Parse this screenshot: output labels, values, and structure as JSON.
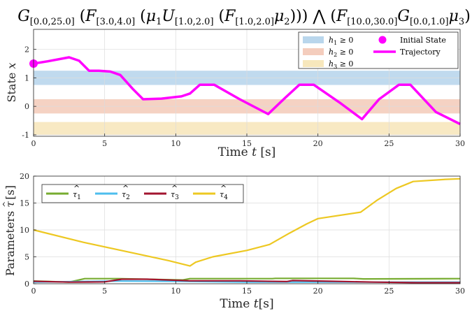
{
  "chart_data": [
    {
      "type": "line",
      "title_parts": {
        "g": "G",
        "g_sub": "[0.0,25.0]",
        "f1": "F",
        "f1_sub": "[3.0,4.0]",
        "mu1": "μ",
        "mu1_sub": "1",
        "u": "U",
        "u_sub": "[1.0,2.0]",
        "f2": "F",
        "f2_sub": "[1.0,2.0]",
        "mu2": "μ",
        "mu2_sub": "2",
        "and": "⋀",
        "f3": "F",
        "f3_sub": "[10.0,30.0]",
        "g2": "G",
        "g2_sub": "[0.0,1.0]",
        "mu3": "μ",
        "mu3_sub": "3"
      },
      "xlabel": "Time",
      "xlabel_var": "t",
      "xlabel_unit": "[s]",
      "ylabel": "State",
      "ylabel_var": "x",
      "xlim": [
        0,
        30
      ],
      "ylim": [
        -1.05,
        2.7
      ],
      "xticks": [
        "0",
        "5",
        "10",
        "15",
        "20",
        "25",
        "30"
      ],
      "yticks": [
        "-1",
        "0",
        "1",
        "2"
      ],
      "grid": true,
      "legend_position": "top-right",
      "bands": [
        {
          "name": "h",
          "sub": "1",
          "suffix": "≥ 0",
          "y_range": [
            0.75,
            1.25
          ],
          "color": "#b9d6ec"
        },
        {
          "name": "h",
          "sub": "2",
          "suffix": "≥ 0",
          "y_range": [
            -0.25,
            0.25
          ],
          "color": "#f4cdbd"
        },
        {
          "name": "h",
          "sub": "3",
          "suffix": "≥ 0",
          "y_range": [
            -1.0,
            -0.55
          ],
          "color": "#f7e7bc"
        }
      ],
      "initial_state": {
        "label": "Initial State",
        "x": 0,
        "y": 1.5,
        "color": "#ff00ff"
      },
      "trajectory": {
        "label": "Trajectory",
        "color": "#ff00ff",
        "x": [
          0,
          1,
          2.5,
          3.2,
          3.9,
          4.6,
          5.4,
          6.1,
          7.0,
          7.7,
          9.0,
          10.4,
          11.0,
          11.7,
          12.7,
          14.5,
          16.5,
          17.7,
          18.7,
          19.7,
          21.5,
          23.1,
          24.3,
          25.7,
          26.5,
          28.3,
          30
        ],
        "y": [
          1.5,
          1.58,
          1.72,
          1.6,
          1.25,
          1.25,
          1.22,
          1.1,
          0.6,
          0.25,
          0.27,
          0.35,
          0.45,
          0.76,
          0.76,
          0.25,
          -0.27,
          0.3,
          0.76,
          0.76,
          0.14,
          -0.45,
          0.25,
          0.76,
          0.76,
          -0.2,
          -0.62
        ]
      }
    },
    {
      "type": "line",
      "xlabel": "Time",
      "xlabel_var": "t",
      "xlabel_unit": "[s]",
      "ylabel": "Parameters",
      "ylabel_var": "τ",
      "ylabel_unit": "[s]",
      "xlim": [
        0,
        30
      ],
      "ylim": [
        0,
        20
      ],
      "xticks": [
        "0",
        "5",
        "10",
        "15",
        "20",
        "25",
        "30"
      ],
      "yticks": [
        "0",
        "5",
        "10",
        "15",
        "20"
      ],
      "grid": true,
      "legend_position": "top-left",
      "series": [
        {
          "name": "τ",
          "sub": "1",
          "color": "#77ac30",
          "x": [
            0,
            2.5,
            3.6,
            6.0,
            10.5,
            11.0,
            16.8,
            17.0,
            22.5,
            23.2,
            30
          ],
          "y": [
            0.5,
            0.3,
            0.95,
            0.95,
            0.7,
            0.95,
            0.95,
            1.0,
            1.0,
            0.9,
            0.95
          ]
        },
        {
          "name": "τ",
          "sub": "2",
          "color": "#4dbeee",
          "x": [
            0,
            6,
            10,
            15,
            20,
            25,
            30
          ],
          "y": [
            0.3,
            0.5,
            0.45,
            0.3,
            0.3,
            0.3,
            0.3
          ]
        },
        {
          "name": "τ",
          "sub": "3",
          "color": "#a2142f",
          "x": [
            0,
            2.6,
            5.0,
            6.2,
            8.0,
            11.0,
            14.5,
            17.8,
            18.2,
            21.0,
            24.0,
            27.0,
            30
          ],
          "y": [
            0.45,
            0.3,
            0.35,
            0.85,
            0.85,
            0.55,
            0.55,
            0.4,
            0.6,
            0.45,
            0.3,
            0.2,
            0.2
          ]
        },
        {
          "name": "τ",
          "sub": "4",
          "color": "#edc822",
          "x": [
            0,
            3.5,
            6.5,
            9.5,
            11.0,
            11.4,
            12.6,
            15.0,
            16.6,
            18.0,
            19.2,
            20.0,
            23.0,
            24.2,
            25.5,
            26.7,
            29.0,
            30
          ],
          "y": [
            10.0,
            7.7,
            6.0,
            4.3,
            3.3,
            4.0,
            5.0,
            6.2,
            7.3,
            9.4,
            11.1,
            12.1,
            13.3,
            15.6,
            17.7,
            19.0,
            19.4,
            19.5
          ]
        }
      ]
    }
  ]
}
